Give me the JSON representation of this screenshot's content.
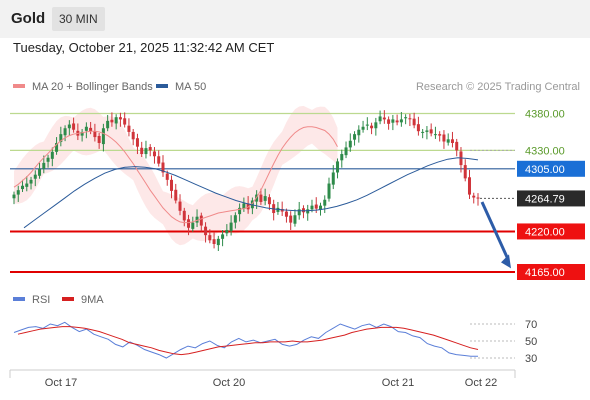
{
  "header": {
    "instrument": "Gold",
    "timeframe": "30 MIN",
    "datetime": "Tuesday, October 21, 2025 11:32:42 AM CET"
  },
  "colors": {
    "bull": "#2e8b4a",
    "bear": "#d0343a",
    "ma20": "#f08a8a",
    "bollinger_fill": "#fde2e2",
    "ma50": "#2b5b9a",
    "resistance": "#bcd98f",
    "pivot": "#2b5b9a",
    "support": "#e00000",
    "rsi": "#5b7fd8",
    "rsi_ma": "#d62020",
    "arrow": "#2d5ca8"
  },
  "chart_data": [
    {
      "type": "candlestick",
      "legend": [
        {
          "label": "MA 20 + Bollinger Bands",
          "color": "#f08a8a"
        },
        {
          "label": "MA 50",
          "color": "#2b5b9a"
        }
      ],
      "credit": "Research © 2025 Trading Central",
      "x_ticks": [
        "Oct 17",
        "Oct 20",
        "Oct 21",
        "Oct 22"
      ],
      "ylim": [
        4150,
        4395
      ],
      "levels": [
        {
          "value": 4380.0,
          "label": "4380.00",
          "kind": "resistance"
        },
        {
          "value": 4330.0,
          "label": "4330.00",
          "kind": "resistance"
        },
        {
          "value": 4305.0,
          "label": "4305.00",
          "kind": "pivot"
        },
        {
          "value": 4220.0,
          "label": "4220.00",
          "kind": "support"
        },
        {
          "value": 4165.0,
          "label": "4165.00",
          "kind": "support"
        }
      ],
      "last_price": {
        "value": 4264.79,
        "label": "4264.79"
      },
      "closes": [
        4270,
        4276,
        4282,
        4285,
        4290,
        4297,
        4305,
        4313,
        4320,
        4328,
        4340,
        4352,
        4360,
        4365,
        4358,
        4350,
        4355,
        4362,
        4356,
        4348,
        4340,
        4360,
        4370,
        4368,
        4375,
        4372,
        4365,
        4355,
        4345,
        4335,
        4325,
        4333,
        4330,
        4322,
        4312,
        4300,
        4290,
        4275,
        4262,
        4248,
        4235,
        4225,
        4232,
        4240,
        4228,
        4215,
        4208,
        4203,
        4210,
        4216,
        4222,
        4232,
        4242,
        4252,
        4258,
        4250,
        4262,
        4270,
        4260,
        4268,
        4257,
        4245,
        4252,
        4247,
        4240,
        4232,
        4242,
        4250,
        4246,
        4250,
        4255,
        4251,
        4255,
        4263,
        4285,
        4300,
        4315,
        4325,
        4334,
        4343,
        4352,
        4358,
        4362,
        4365,
        4360,
        4368,
        4376,
        4372,
        4366,
        4372,
        4368,
        4372,
        4375,
        4373,
        4364,
        4356,
        4355,
        4357,
        4353,
        4352,
        4350,
        4342,
        4345,
        4340,
        4330,
        4310,
        4292,
        4270,
        4266,
        4265
      ],
      "ma20": [
        4280,
        4284,
        4289,
        4294,
        4300,
        4307,
        4314,
        4320,
        4326,
        4332,
        4338,
        4343,
        4347,
        4350,
        4352,
        4353,
        4354,
        4355,
        4356,
        4356,
        4355,
        4353,
        4350,
        4346,
        4341,
        4335,
        4328,
        4320,
        4312,
        4303,
        4294,
        4285,
        4276,
        4268,
        4260,
        4252,
        4246,
        4240,
        4236,
        4233,
        4232,
        4232,
        4233,
        4235,
        4237,
        4239,
        4241,
        4243,
        4245,
        4246,
        4247,
        4248,
        4249,
        4250,
        4251,
        4253,
        4258,
        4266,
        4276,
        4288,
        4300,
        4312,
        4323,
        4333,
        4341,
        4348,
        4354,
        4358,
        4361,
        4362,
        4362,
        4361,
        4359,
        4357,
        4352,
        4345,
        4335
      ],
      "ma20_index_offset": 0,
      "ma50": [
        4225,
        4235,
        4245,
        4255,
        4265,
        4275,
        4284,
        4292,
        4299,
        4304,
        4307,
        4308,
        4307,
        4305,
        4301,
        4296,
        4290,
        4284,
        4278,
        4272,
        4267,
        4262,
        4258,
        4255,
        4252,
        4250,
        4249,
        4248,
        4248,
        4249,
        4251,
        4254,
        4258,
        4263,
        4269,
        4276,
        4283,
        4290,
        4297,
        4303,
        4309,
        4314,
        4318,
        4320,
        4319,
        4317
      ]
    },
    {
      "type": "line",
      "legend": [
        {
          "label": "RSI",
          "color": "#5b7fd8"
        },
        {
          "label": "9MA",
          "color": "#d62020"
        }
      ],
      "ylim": [
        22,
        82
      ],
      "y_ticks": [
        {
          "value": 70,
          "label": "70"
        },
        {
          "value": 50,
          "label": "50"
        },
        {
          "value": 30,
          "label": "30"
        }
      ],
      "rsi": [
        60,
        63,
        66,
        67,
        65,
        70,
        68,
        72,
        66,
        61,
        64,
        58,
        55,
        52,
        46,
        43,
        49,
        45,
        40,
        37,
        34,
        30,
        35,
        40,
        44,
        42,
        47,
        50,
        45,
        42,
        49,
        53,
        49,
        51,
        48,
        50,
        52,
        46,
        44,
        46,
        51,
        55,
        53,
        60,
        65,
        70,
        67,
        64,
        68,
        70,
        66,
        70,
        67,
        61,
        60,
        56,
        54,
        47,
        44,
        42,
        36,
        34,
        33,
        32,
        32
      ],
      "rsi_ma": [
        58,
        60,
        62,
        64,
        65,
        66,
        67,
        67,
        66,
        65,
        63,
        61,
        58,
        55,
        52,
        48,
        46,
        44,
        42,
        39,
        37,
        35,
        34,
        35,
        37,
        39,
        41,
        43,
        44,
        45,
        46,
        47,
        48,
        48,
        49,
        49,
        49,
        50,
        49,
        49,
        50,
        51,
        53,
        55,
        57,
        60,
        62,
        64,
        65,
        66,
        66,
        66,
        65,
        63,
        61,
        59,
        57,
        54,
        51,
        48,
        45,
        42,
        40
      ]
    }
  ]
}
